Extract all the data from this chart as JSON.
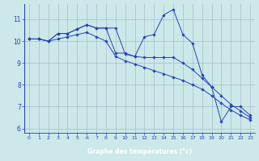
{
  "background_color": "#cce8e8",
  "xaxis_bar_color": "#2255bb",
  "grid_color": "#aabbcc",
  "line_color": "#2244bb",
  "xlabel": "Graphe des températures (°c)",
  "xlim": [
    -0.5,
    23.5
  ],
  "ylim": [
    5.8,
    11.7
  ],
  "yticks": [
    6,
    7,
    8,
    9,
    10,
    11
  ],
  "xticks": [
    0,
    1,
    2,
    3,
    4,
    5,
    6,
    7,
    8,
    9,
    10,
    11,
    12,
    13,
    14,
    15,
    16,
    17,
    18,
    19,
    20,
    21,
    22,
    23
  ],
  "series1_x": [
    0,
    1,
    2,
    3,
    4,
    5,
    6,
    7,
    8,
    9,
    10,
    11,
    12,
    13,
    14,
    15,
    16,
    17,
    18,
    19,
    20,
    21,
    22,
    23
  ],
  "series1_y": [
    10.1,
    10.1,
    10.0,
    10.35,
    10.35,
    10.55,
    10.75,
    10.6,
    10.6,
    10.6,
    9.4,
    9.3,
    10.2,
    10.3,
    11.2,
    11.45,
    10.3,
    9.9,
    8.45,
    7.9,
    6.3,
    7.0,
    7.0,
    6.6
  ],
  "series2_x": [
    0,
    1,
    2,
    3,
    4,
    5,
    6,
    7,
    8,
    9,
    10,
    11,
    12,
    13,
    14,
    15,
    16,
    17,
    18,
    19,
    20,
    21,
    22,
    23
  ],
  "series2_y": [
    10.1,
    10.1,
    10.0,
    10.35,
    10.35,
    10.55,
    10.75,
    10.6,
    10.6,
    9.45,
    9.45,
    9.3,
    9.25,
    9.25,
    9.25,
    9.25,
    9.0,
    8.7,
    8.3,
    7.9,
    7.5,
    7.1,
    6.8,
    6.5
  ],
  "series3_x": [
    0,
    1,
    2,
    3,
    4,
    5,
    6,
    7,
    8,
    9,
    10,
    11,
    12,
    13,
    14,
    15,
    16,
    17,
    18,
    19,
    20,
    21,
    22,
    23
  ],
  "series3_y": [
    10.1,
    10.1,
    10.0,
    10.1,
    10.2,
    10.3,
    10.4,
    10.2,
    10.0,
    9.3,
    9.1,
    8.95,
    8.8,
    8.65,
    8.5,
    8.35,
    8.2,
    8.0,
    7.8,
    7.5,
    7.15,
    6.85,
    6.6,
    6.4
  ]
}
